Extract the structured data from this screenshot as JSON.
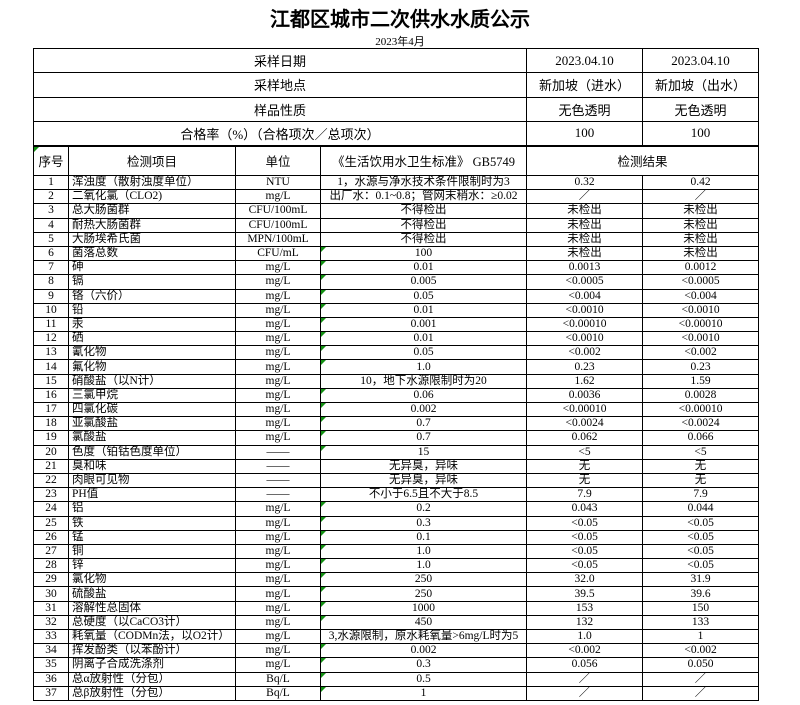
{
  "page": {
    "title": "江都区城市二次供水水质公示",
    "subtitle": "2023年4月"
  },
  "colors": {
    "border": "#000000",
    "flag_green": "#149114"
  },
  "summary": {
    "rows": [
      {
        "label": "采样日期",
        "in": "2023.04.10",
        "out": "2023.04.10"
      },
      {
        "label": "采样地点",
        "in": "新加坡（进水）",
        "out": "新加坡（出水）"
      },
      {
        "label": "样品性质",
        "in": "无色透明",
        "out": "无色透明"
      },
      {
        "label": "合格率（%）（合格项次／总项次）",
        "in": "100",
        "out": "100"
      }
    ]
  },
  "table": {
    "headers": {
      "index": "序号",
      "item": "检测项目",
      "unit": "单位",
      "standard": "《生活饮用水卫生标准》 GB5749",
      "result": "检测结果"
    },
    "rows": [
      {
        "no": "1",
        "item": "浑浊度（散射浊度单位）",
        "unit": "NTU",
        "standard": "1，水源与净水技术条件限制时为3",
        "r1": "0.32",
        "r2": "0.42",
        "flag": false
      },
      {
        "no": "2",
        "item": "二氧化氯（CLO2)",
        "unit": "mg/L",
        "standard": "出厂水：0.1~0.8；管网末稍水：≥0.02",
        "r1": "／",
        "r2": "／",
        "flag": false
      },
      {
        "no": "3",
        "item": "总大肠菌群",
        "unit": "CFU/100mL",
        "standard": "不得检出",
        "r1": "未检出",
        "r2": "未检出",
        "flag": false
      },
      {
        "no": "4",
        "item": "耐热大肠菌群",
        "unit": "CFU/100mL",
        "standard": "不得检出",
        "r1": "未检出",
        "r2": "未检出",
        "flag": false
      },
      {
        "no": "5",
        "item": "大肠埃希氏菌",
        "unit": "MPN/100mL",
        "standard": "不得检出",
        "r1": "未检出",
        "r2": "未检出",
        "flag": false
      },
      {
        "no": "6",
        "item": "菌落总数",
        "unit": "CFU/mL",
        "standard": "100",
        "r1": "未检出",
        "r2": "未检出",
        "flag": true
      },
      {
        "no": "7",
        "item": "砷",
        "unit": "mg/L",
        "standard": "0.01",
        "r1": "0.0013",
        "r2": "0.0012",
        "flag": true
      },
      {
        "no": "8",
        "item": "镉",
        "unit": "mg/L",
        "standard": "0.005",
        "r1": "<0.0005",
        "r2": "<0.0005",
        "flag": true
      },
      {
        "no": "9",
        "item": "铬（六价）",
        "unit": "mg/L",
        "standard": "0.05",
        "r1": "<0.004",
        "r2": "<0.004",
        "flag": true
      },
      {
        "no": "10",
        "item": "铅",
        "unit": "mg/L",
        "standard": "0.01",
        "r1": "<0.0010",
        "r2": "<0.0010",
        "flag": true
      },
      {
        "no": "11",
        "item": "汞",
        "unit": "mg/L",
        "standard": "0.001",
        "r1": "<0.00010",
        "r2": "<0.00010",
        "flag": true
      },
      {
        "no": "12",
        "item": "硒",
        "unit": "mg/L",
        "standard": "0.01",
        "r1": "<0.0010",
        "r2": "<0.0010",
        "flag": true
      },
      {
        "no": "13",
        "item": "氰化物",
        "unit": "mg/L",
        "standard": "0.05",
        "r1": "<0.002",
        "r2": "<0.002",
        "flag": true
      },
      {
        "no": "14",
        "item": "氟化物",
        "unit": "mg/L",
        "standard": "1.0",
        "r1": "0.23",
        "r2": "0.23",
        "flag": true
      },
      {
        "no": "15",
        "item": "硝酸盐（以N计）",
        "unit": "mg/L",
        "standard": "10，地下水源限制时为20",
        "r1": "1.62",
        "r2": "1.59",
        "flag": false
      },
      {
        "no": "16",
        "item": "三氯甲烷",
        "unit": "mg/L",
        "standard": "0.06",
        "r1": "0.0036",
        "r2": "0.0028",
        "flag": true
      },
      {
        "no": "17",
        "item": "四氯化碳",
        "unit": "mg/L",
        "standard": "0.002",
        "r1": "<0.00010",
        "r2": "<0.00010",
        "flag": true
      },
      {
        "no": "18",
        "item": "亚氯酸盐",
        "unit": "mg/L",
        "standard": "0.7",
        "r1": "<0.0024",
        "r2": "<0.0024",
        "flag": true
      },
      {
        "no": "19",
        "item": "氯酸盐",
        "unit": "mg/L",
        "standard": "0.7",
        "r1": "0.062",
        "r2": "0.066",
        "flag": true
      },
      {
        "no": "20",
        "item": "色度（铂钴色度单位）",
        "unit": "——",
        "standard": "15",
        "r1": "<5",
        "r2": "<5",
        "flag": true
      },
      {
        "no": "21",
        "item": "臭和味",
        "unit": "——",
        "standard": "无异臭，异味",
        "r1": "无",
        "r2": "无",
        "flag": false
      },
      {
        "no": "22",
        "item": "肉眼可见物",
        "unit": "——",
        "standard": "无异臭，异味",
        "r1": "无",
        "r2": "无",
        "flag": false
      },
      {
        "no": "23",
        "item": "PH值",
        "unit": "——",
        "standard": "不小于6.5且不大于8.5",
        "r1": "7.9",
        "r2": "7.9",
        "flag": false
      },
      {
        "no": "24",
        "item": "铝",
        "unit": "mg/L",
        "standard": "0.2",
        "r1": "0.043",
        "r2": "0.044",
        "flag": true
      },
      {
        "no": "25",
        "item": "铁",
        "unit": "mg/L",
        "standard": "0.3",
        "r1": "<0.05",
        "r2": "<0.05",
        "flag": true
      },
      {
        "no": "26",
        "item": "锰",
        "unit": "mg/L",
        "standard": "0.1",
        "r1": "<0.05",
        "r2": "<0.05",
        "flag": true
      },
      {
        "no": "27",
        "item": "铜",
        "unit": "mg/L",
        "standard": "1.0",
        "r1": "<0.05",
        "r2": "<0.05",
        "flag": true
      },
      {
        "no": "28",
        "item": "锌",
        "unit": "mg/L",
        "standard": "1.0",
        "r1": "<0.05",
        "r2": "<0.05",
        "flag": true
      },
      {
        "no": "29",
        "item": "氯化物",
        "unit": "mg/L",
        "standard": "250",
        "r1": "32.0",
        "r2": "31.9",
        "flag": true
      },
      {
        "no": "30",
        "item": "硫酸盐",
        "unit": "mg/L",
        "standard": "250",
        "r1": "39.5",
        "r2": "39.6",
        "flag": true
      },
      {
        "no": "31",
        "item": "溶解性总固体",
        "unit": "mg/L",
        "standard": "1000",
        "r1": "153",
        "r2": "150",
        "flag": true
      },
      {
        "no": "32",
        "item": "总硬度（以CaCO3计）",
        "unit": "mg/L",
        "standard": "450",
        "r1": "132",
        "r2": "133",
        "flag": true
      },
      {
        "no": "33",
        "item": "耗氧量（CODMn法，以O2计）",
        "unit": "mg/L",
        "standard": "3,水源限制，原水耗氧量>6mg/L时为5",
        "r1": "1.0",
        "r2": "1",
        "flag": false
      },
      {
        "no": "34",
        "item": "挥发酚类（以苯酚计）",
        "unit": "mg/L",
        "standard": "0.002",
        "r1": "<0.002",
        "r2": "<0.002",
        "flag": true
      },
      {
        "no": "35",
        "item": "阴离子合成洗涤剂",
        "unit": "mg/L",
        "standard": "0.3",
        "r1": "0.056",
        "r2": "0.050",
        "flag": true
      },
      {
        "no": "36",
        "item": "总α放射性（分包）",
        "unit": "Bq/L",
        "standard": "0.5",
        "r1": "／",
        "r2": "／",
        "flag": true
      },
      {
        "no": "37",
        "item": "总β放射性（分包）",
        "unit": "Bq/L",
        "standard": "1",
        "r1": "／",
        "r2": "／",
        "flag": true
      }
    ]
  }
}
